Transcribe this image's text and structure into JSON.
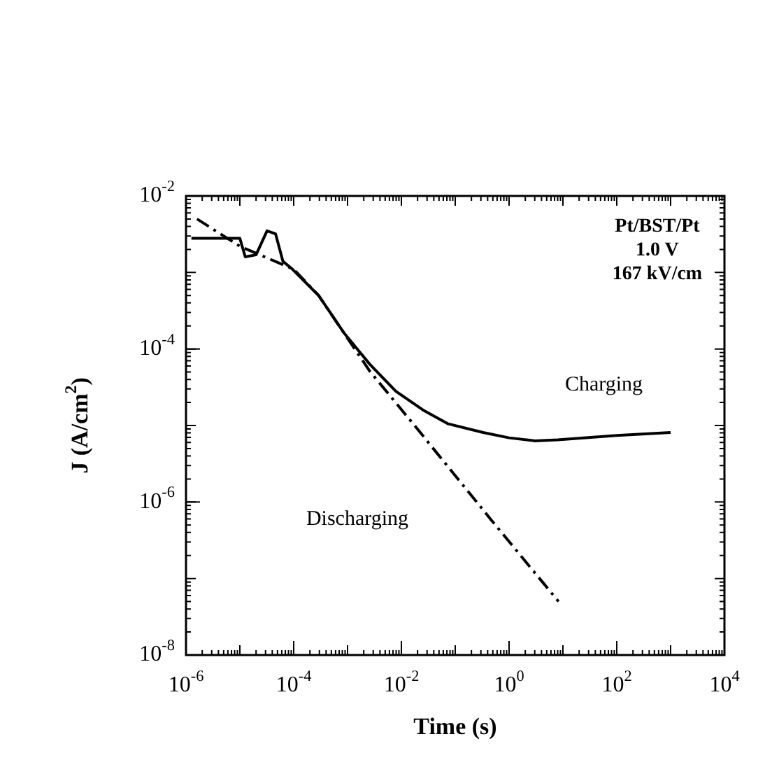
{
  "chart_data": {
    "type": "line",
    "xlabel": "Time (s)",
    "ylabel": "J (A/cm$^{2}$)",
    "log": "xy",
    "grid": false,
    "legend": false,
    "marker": "none",
    "xlim": [
      1e-06,
      10000.0
    ],
    "ylim": [
      1e-08,
      0.01
    ],
    "xticks": [
      {
        "value": 1e-06,
        "label": "10$^{-6}$"
      },
      {
        "value": 0.0001,
        "label": "10$^{-4}$"
      },
      {
        "value": 0.01,
        "label": "10$^{-2}$"
      },
      {
        "value": 1,
        "label": "10$^{0}$"
      },
      {
        "value": 100,
        "label": "10$^{2}$"
      },
      {
        "value": 10000.0,
        "label": "10$^{4}$"
      }
    ],
    "yticks": [
      {
        "value": 1e-08,
        "label": "10$^{-8}$"
      },
      {
        "value": 1e-06,
        "label": "10$^{-6}$"
      },
      {
        "value": 0.0001,
        "label": "10$^{-4}$"
      },
      {
        "value": 0.01,
        "label": "10$^{-2}$"
      }
    ],
    "annotations": [
      "Pt/BST/Pt",
      "1.0 V",
      "167 kV/cm"
    ],
    "series": [
      {
        "name": "Charging",
        "color": "#000000",
        "line_style": "solid",
        "x": [
          1.26e-06,
          1e-05,
          1.26e-05,
          2e-05,
          3.2e-05,
          4.6e-05,
          6.3e-05,
          9.5e-05,
          0.00029,
          0.00087,
          0.0026,
          0.0079,
          0.025,
          0.074,
          0.33,
          1,
          3,
          8,
          100,
          1000
        ],
        "values": [
          0.0028,
          0.0028,
          0.0016,
          0.0017,
          0.0035,
          0.0032,
          0.0014,
          0.0011,
          0.0005,
          0.00016,
          6.3e-05,
          2.8e-05,
          1.6e-05,
          1.05e-05,
          8.1e-06,
          6.9e-06,
          6.3e-06,
          6.5e-06,
          7.4e-06,
          8.1e-06
        ]
      },
      {
        "name": "Discharging",
        "color": "#000000",
        "line_style": "dashed",
        "x": [
          1.6e-06,
          1e-05,
          0.0001,
          0.00029,
          0.0026,
          0.0166,
          0.46,
          8.3
        ],
        "values": [
          0.005,
          0.0022,
          0.0011,
          0.0005,
          5.1e-05,
          1.05e-05,
          5.9e-07,
          5e-08
        ]
      }
    ]
  }
}
